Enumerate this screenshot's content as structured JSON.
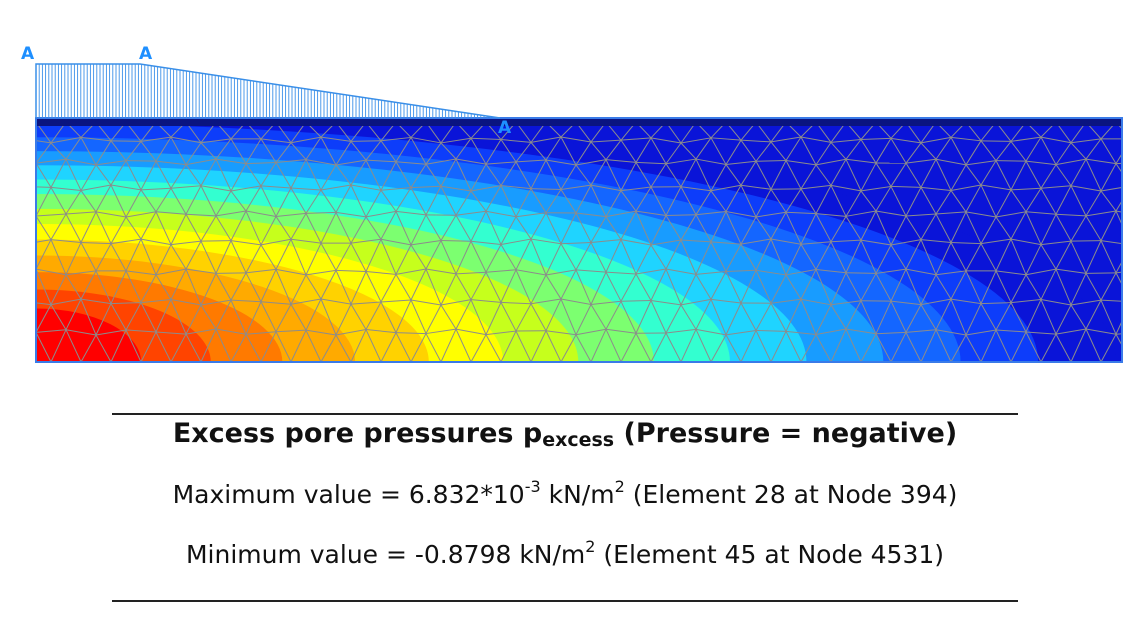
{
  "figure": {
    "load_labels": [
      "A",
      "A",
      "A"
    ],
    "colors": {
      "contour_scale": [
        "#ff0000",
        "#ff4400",
        "#ff7a00",
        "#ffaa00",
        "#ffd200",
        "#ffff00",
        "#c6ff1c",
        "#7cff70",
        "#33ffd0",
        "#1fd4ff",
        "#189cff",
        "#1466ff",
        "#0d3dfa",
        "#0a14d8"
      ],
      "mesh_line": "#8c8c8c",
      "load": "#3a8fe8",
      "surface_band": "#0a1480",
      "label": "#1e8fff"
    }
  },
  "caption": {
    "title_main": "Excess pore pressures p",
    "title_sub": "excess",
    "title_rest": " (Pressure = negative)",
    "max_prefix": "Maximum value = 6.832*10",
    "max_exp": "-3",
    "max_unit": " kN/m",
    "max_unit_exp": "2",
    "max_suffix": " (Element 28 at Node 394)",
    "min_prefix": "Minimum value = -0.8798 kN/m",
    "min_unit_exp": "2",
    "min_suffix": " (Element 45 at Node 4531)"
  }
}
